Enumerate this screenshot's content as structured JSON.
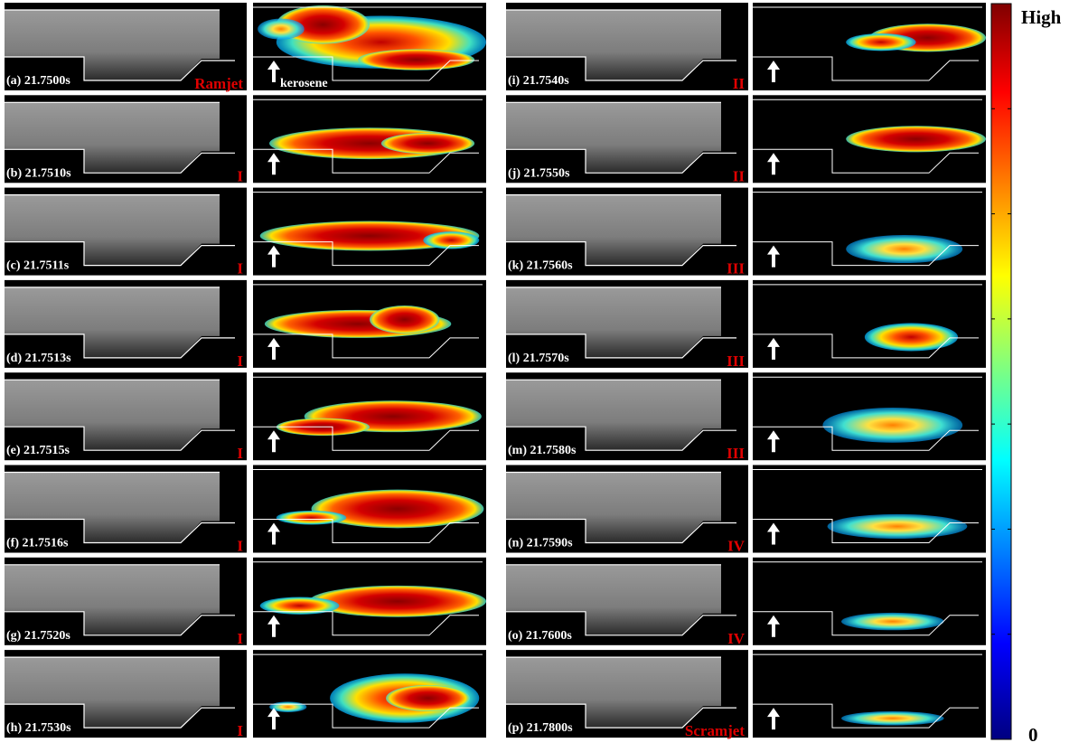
{
  "panels": [
    {
      "label": "(a) 21.7500s",
      "regime": "Ramjet"
    },
    {
      "label": "(b) 21.7510s",
      "regime": "I"
    },
    {
      "label": "(c) 21.7511s",
      "regime": "I"
    },
    {
      "label": "(d) 21.7513s",
      "regime": "I"
    },
    {
      "label": "(e) 21.7515s",
      "regime": "I"
    },
    {
      "label": "(f) 21.7516s",
      "regime": "I"
    },
    {
      "label": "(g) 21.7520s",
      "regime": "I"
    },
    {
      "label": "(h) 21.7530s",
      "regime": "I"
    },
    {
      "label": "(i) 21.7540s",
      "regime": "II"
    },
    {
      "label": "(j) 21.7550s",
      "regime": "II"
    },
    {
      "label": "(k) 21.7560s",
      "regime": "III"
    },
    {
      "label": "(l) 21.7570s",
      "regime": "III"
    },
    {
      "label": "(m) 21.7580s",
      "regime": "III"
    },
    {
      "label": "(n) 21.7590s",
      "regime": "IV"
    },
    {
      "label": "(o) 21.7600s",
      "regime": "IV"
    },
    {
      "label": "(p) 21.7800s",
      "regime": "Scramjet"
    }
  ],
  "annotation": "kerosene",
  "colorbar": {
    "top": "High",
    "bottom": "0"
  }
}
